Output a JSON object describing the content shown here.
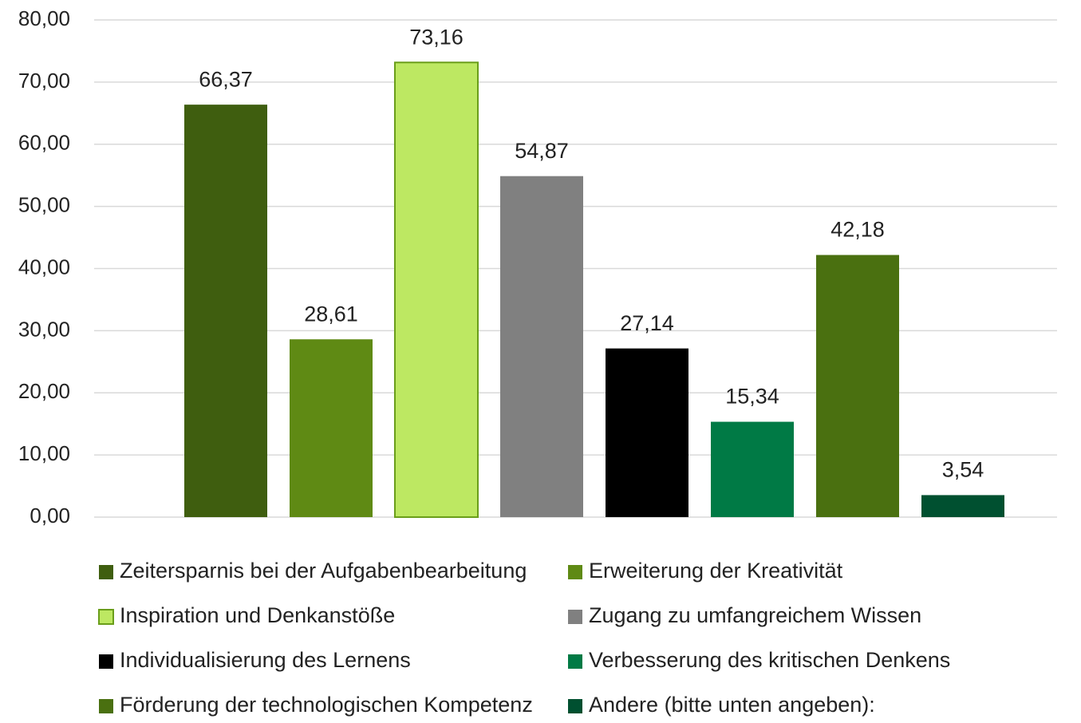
{
  "chart_data": {
    "type": "bar",
    "series": [
      {
        "name": "Zeitersparnis bei der Aufgabenbearbeitung",
        "color": "#3f5e0f",
        "values": [
          66.37
        ],
        "value_labels": [
          "66,37"
        ]
      },
      {
        "name": "Erweiterung der Kreativität",
        "color": "#5f8a14",
        "values": [
          28.61
        ],
        "value_labels": [
          "28,61"
        ]
      },
      {
        "name": "Inspiration und Denkanstöße",
        "color": "#bde862",
        "values": [
          73.16
        ],
        "value_labels": [
          "73,16"
        ]
      },
      {
        "name": "Zugang zu umfangreichem Wissen",
        "color": "#808080",
        "values": [
          54.87
        ],
        "value_labels": [
          "54,87"
        ]
      },
      {
        "name": "Individualisierung des Lernens",
        "color": "#000000",
        "values": [
          27.14
        ],
        "value_labels": [
          "27,14"
        ]
      },
      {
        "name": "Verbesserung des kritischen Denkens",
        "color": "#007a45",
        "values": [
          15.34
        ],
        "value_labels": [
          "15,34"
        ]
      },
      {
        "name": "Förderung der technologischen Kompetenz",
        "color": "#4a7010",
        "values": [
          42.18
        ],
        "value_labels": [
          "42,18"
        ]
      },
      {
        "name": "Andere (bitte unten angeben):",
        "color": "#005030",
        "values": [
          3.54
        ],
        "value_labels": [
          "3,54"
        ]
      }
    ],
    "ylim": [
      0,
      80
    ],
    "yticks": [
      {
        "value": 0,
        "label": "0,00"
      },
      {
        "value": 10,
        "label": "10,00"
      },
      {
        "value": 20,
        "label": "20,00"
      },
      {
        "value": 30,
        "label": "30,00"
      },
      {
        "value": 40,
        "label": "40,00"
      },
      {
        "value": 50,
        "label": "50,00"
      },
      {
        "value": 60,
        "label": "60,00"
      },
      {
        "value": 70,
        "label": "70,00"
      },
      {
        "value": 80,
        "label": "80,00"
      }
    ],
    "grid": true,
    "legend": "bottom"
  }
}
